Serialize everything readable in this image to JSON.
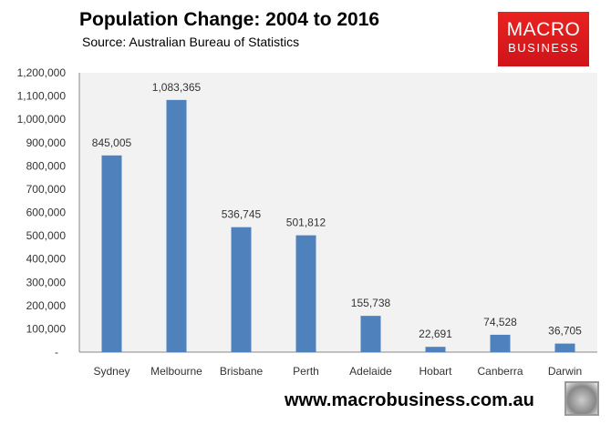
{
  "chart_data": {
    "type": "bar",
    "title": "Population Change: 2004 to 2016",
    "subtitle": "Source: Australian Bureau of Statistics",
    "categories": [
      "Sydney",
      "Melbourne",
      "Brisbane",
      "Perth",
      "Adelaide",
      "Hobart",
      "Canberra",
      "Darwin"
    ],
    "values": [
      845005,
      1083365,
      536745,
      501812,
      155738,
      22691,
      74528,
      36705
    ],
    "data_labels": [
      "845,005",
      "1,083,365",
      "536,745",
      "501,812",
      "155,738",
      "22,691",
      "74,528",
      "36,705"
    ],
    "ylim": [
      0,
      1200000
    ],
    "yticks": [
      0,
      100000,
      200000,
      300000,
      400000,
      500000,
      600000,
      700000,
      800000,
      900000,
      1000000,
      1100000,
      1200000
    ],
    "ytick_labels": [
      "-",
      "100,000",
      "200,000",
      "300,000",
      "400,000",
      "500,000",
      "600,000",
      "700,000",
      "800,000",
      "900,000",
      "1,000,000",
      "1,100,000",
      "1,200,000"
    ],
    "xlabel": "",
    "ylabel": "",
    "bar_color": "#4f81bd",
    "grid": false
  },
  "logo": {
    "line1": "MACRO",
    "line2": "BUSINESS"
  },
  "footer": {
    "url": "www.macrobusiness.com.au"
  }
}
